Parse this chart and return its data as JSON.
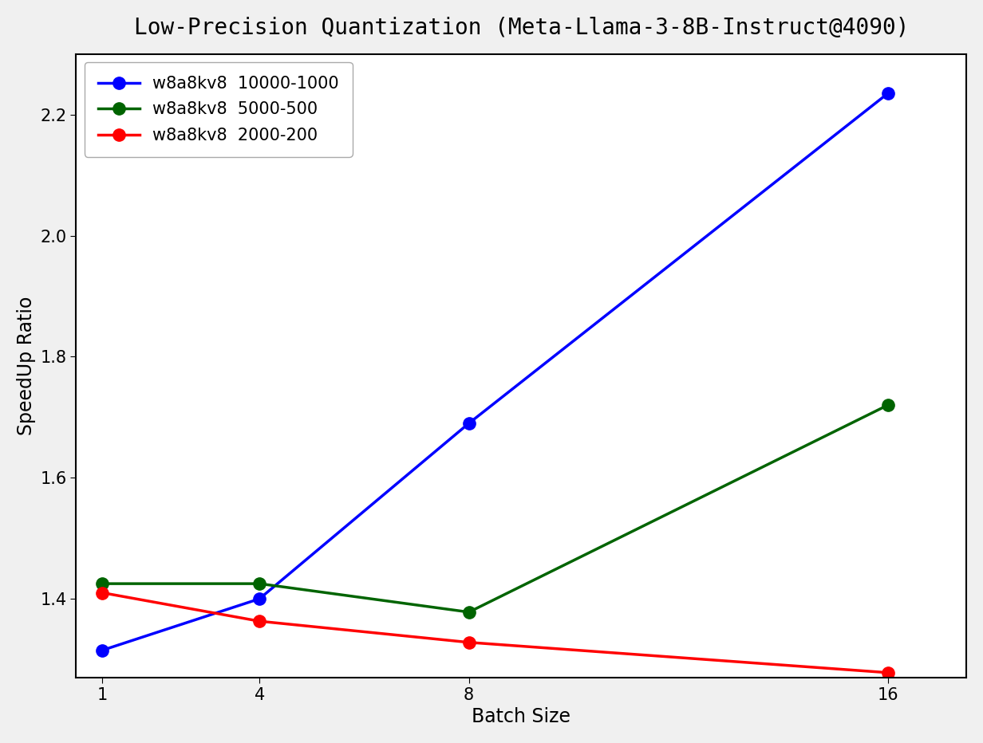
{
  "title": "Low-Precision Quantization (Meta-Llama-3-8B-Instruct@4090)",
  "xlabel": "Batch Size",
  "ylabel": "SpeedUp Ratio",
  "x_values": [
    1,
    4,
    8,
    16
  ],
  "series": [
    {
      "label": "w8a8kv8  10000-1000",
      "color": "#0000ff",
      "values": [
        1.315,
        1.4,
        1.69,
        2.235
      ]
    },
    {
      "label": "w8a8kv8  5000-500",
      "color": "#006400",
      "values": [
        1.425,
        1.425,
        1.378,
        1.72
      ]
    },
    {
      "label": "w8a8kv8  2000-200",
      "color": "#ff0000",
      "values": [
        1.41,
        1.363,
        1.328,
        1.278
      ]
    }
  ],
  "ylim_bottom": 1.27,
  "ylim_top": 2.3,
  "yticks": [
    1.4,
    1.6,
    1.8,
    2.0,
    2.2
  ],
  "xticks": [
    1,
    4,
    8,
    16
  ],
  "fig_facecolor": "#f0f0f0",
  "ax_facecolor": "#ffffff",
  "title_fontsize": 20,
  "axis_label_fontsize": 17,
  "tick_fontsize": 15,
  "legend_fontsize": 15,
  "linewidth": 2.5,
  "markersize": 11
}
